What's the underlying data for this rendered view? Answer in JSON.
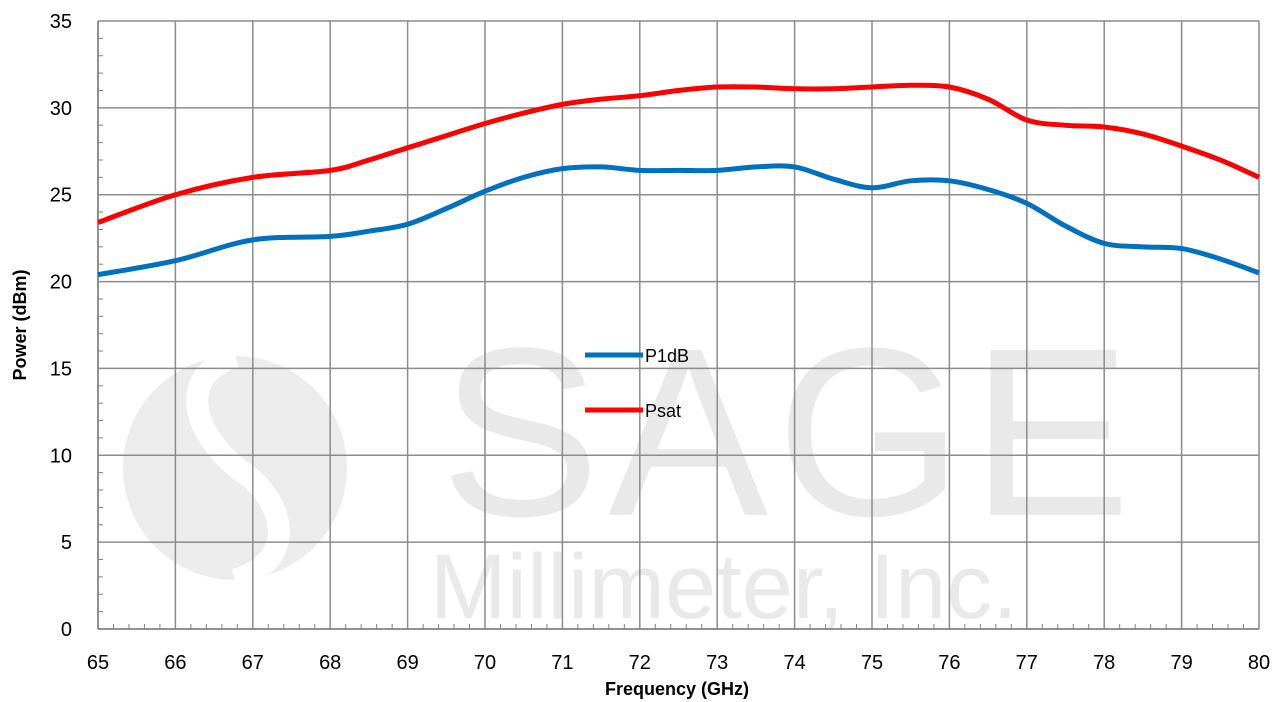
{
  "chart_data": {
    "type": "line",
    "xlabel": "Frequency (GHz)",
    "ylabel": "Power (dBm)",
    "xlim": [
      65,
      80
    ],
    "ylim": [
      0,
      35
    ],
    "x_ticks": [
      65,
      66,
      67,
      68,
      69,
      70,
      71,
      72,
      73,
      74,
      75,
      76,
      77,
      78,
      79,
      80
    ],
    "y_ticks": [
      0,
      5,
      10,
      15,
      20,
      25,
      30,
      35
    ],
    "grid": true,
    "legend_position": "center",
    "series": [
      {
        "name": "P1dB",
        "color": "#0070c0",
        "x": [
          65,
          66,
          67,
          68,
          68.5,
          69,
          69.5,
          70,
          70.5,
          71,
          71.5,
          72,
          72.5,
          73,
          73.5,
          74,
          74.5,
          75,
          75.5,
          76,
          76.5,
          77,
          77.5,
          78,
          78.5,
          79,
          79.5,
          80
        ],
        "values": [
          20.4,
          21.2,
          22.4,
          22.6,
          22.9,
          23.3,
          24.2,
          25.2,
          26.0,
          26.5,
          26.6,
          26.4,
          26.4,
          26.4,
          26.6,
          26.6,
          25.9,
          25.4,
          25.8,
          25.8,
          25.3,
          24.5,
          23.2,
          22.2,
          22.0,
          21.9,
          21.3,
          20.5
        ]
      },
      {
        "name": "Psat",
        "color": "#ff0000",
        "x": [
          65,
          66,
          67,
          68,
          68.5,
          69,
          69.5,
          70,
          70.5,
          71,
          71.5,
          72,
          72.5,
          73,
          73.5,
          74,
          74.5,
          75,
          75.5,
          76,
          76.5,
          77,
          77.5,
          78,
          78.5,
          79,
          79.5,
          80
        ],
        "values": [
          23.4,
          25.0,
          26.0,
          26.4,
          27.0,
          27.7,
          28.4,
          29.1,
          29.7,
          30.2,
          30.5,
          30.7,
          31.0,
          31.2,
          31.2,
          31.1,
          31.1,
          31.2,
          31.3,
          31.2,
          30.5,
          29.3,
          29.0,
          28.9,
          28.5,
          27.8,
          27.0,
          26.0
        ]
      }
    ]
  },
  "watermark": {
    "line1": "SAGE",
    "line2": "Millimeter, Inc."
  }
}
